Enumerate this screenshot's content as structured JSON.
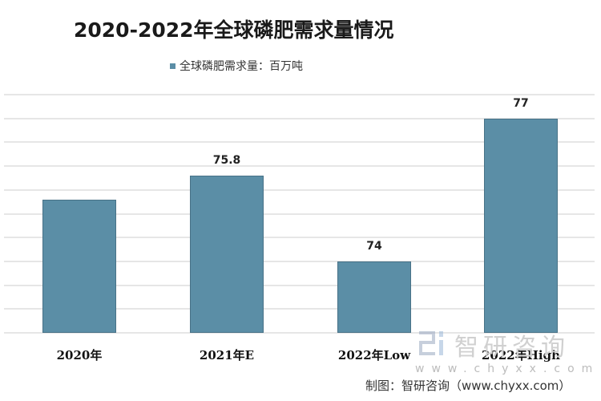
{
  "header": {
    "title": "2020-2022年全球磷肥需求量情况"
  },
  "legend": {
    "label": "全球磷肥需求量：百万吨",
    "swatch_color": "#5b8ea6"
  },
  "colors": {
    "bar": "#5b8ea6",
    "gridline": "#e6e6e6"
  },
  "chart_data": {
    "type": "bar",
    "title": "2020-2022年全球磷肥需求量情况",
    "xlabel": "",
    "ylabel": "",
    "categories": [
      "2020年",
      "2021年E",
      "2022年Low",
      "2022年High"
    ],
    "series": [
      {
        "name": "全球磷肥需求量：百万吨",
        "values": [
          75.3,
          75.8,
          74,
          77
        ],
        "data_labels": [
          "",
          "75.8",
          "74",
          "77"
        ]
      }
    ],
    "ylim": [
      72.5,
      77.5
    ],
    "grid": true,
    "gridline_step": 0.5,
    "y_axis_visible": false,
    "legend_position": "top"
  },
  "bars": [
    {
      "category": "2020年",
      "value": 75.3,
      "label": ""
    },
    {
      "category": "2021年E",
      "value": 75.8,
      "label": "75.8"
    },
    {
      "category": "2022年Low",
      "value": 74,
      "label": "74"
    },
    {
      "category": "2022年High",
      "value": 77,
      "label": "77"
    }
  ],
  "watermark": {
    "brand_cn": "智研咨询",
    "url": "www.chyxx.com"
  },
  "footer": {
    "source": "制图：智研咨询（www.chyxx.com）"
  }
}
